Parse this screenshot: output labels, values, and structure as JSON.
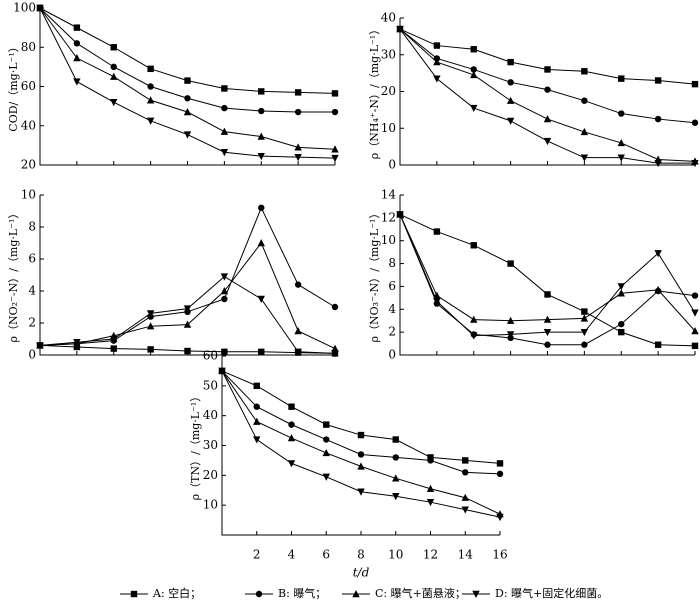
{
  "chart_data": [
    {
      "type": "line",
      "y_label": "COD/（mg·L⁻¹）",
      "x": [
        0,
        2,
        4,
        6,
        8,
        10,
        12,
        14,
        16
      ],
      "xlim": [
        0,
        16
      ],
      "ylim": [
        20,
        100
      ],
      "yticks": [
        20,
        40,
        60,
        80,
        100
      ],
      "series": [
        {
          "marker": "square",
          "values": [
            100,
            90,
            80,
            69,
            63,
            59,
            57.5,
            57,
            56.5
          ]
        },
        {
          "marker": "circle",
          "values": [
            100,
            82,
            70,
            60,
            54,
            49,
            47.5,
            47,
            47
          ]
        },
        {
          "marker": "triangle-up",
          "values": [
            100,
            74.5,
            65,
            53,
            47,
            37,
            34.5,
            29,
            28
          ]
        },
        {
          "marker": "triangle-down",
          "values": [
            100,
            62.5,
            52,
            42.5,
            35.5,
            26.5,
            24.5,
            24,
            23.5
          ]
        }
      ]
    },
    {
      "type": "line",
      "y_label": "ρ（NH₄⁺-N）/（mg·L⁻¹）",
      "x": [
        0,
        2,
        4,
        6,
        8,
        10,
        12,
        14,
        16
      ],
      "xlim": [
        0,
        16
      ],
      "ylim": [
        0,
        40
      ],
      "yticks": [
        0,
        10,
        20,
        30,
        40
      ],
      "series": [
        {
          "marker": "square",
          "values": [
            37,
            32.5,
            31.5,
            28,
            26,
            25.5,
            23.5,
            23,
            22
          ]
        },
        {
          "marker": "circle",
          "values": [
            37,
            29,
            26,
            22.5,
            20.5,
            17.5,
            14,
            12.5,
            11.5
          ]
        },
        {
          "marker": "triangle-up",
          "values": [
            37,
            28,
            24.5,
            17.5,
            12.5,
            9,
            6,
            1.5,
            1
          ]
        },
        {
          "marker": "triangle-down",
          "values": [
            37,
            23.5,
            15.5,
            12,
            6.5,
            2,
            2,
            0.5,
            0.5
          ]
        }
      ]
    },
    {
      "type": "line",
      "y_label": "ρ（NO₂⁻-N）/（mg·L⁻¹）",
      "x": [
        0,
        2,
        4,
        6,
        8,
        10,
        12,
        14,
        16
      ],
      "xlim": [
        0,
        16
      ],
      "ylim": [
        0,
        10
      ],
      "yticks": [
        0,
        2,
        4,
        6,
        8,
        10
      ],
      "series": [
        {
          "marker": "square",
          "values": [
            0.6,
            0.5,
            0.4,
            0.35,
            0.25,
            0.2,
            0.2,
            0.15,
            0.1
          ]
        },
        {
          "marker": "circle",
          "values": [
            0.6,
            0.7,
            0.9,
            2.4,
            2.7,
            3.5,
            9.2,
            4.4,
            3.0
          ]
        },
        {
          "marker": "triangle-up",
          "values": [
            0.6,
            0.7,
            1.2,
            1.8,
            1.9,
            4.0,
            7.0,
            1.5,
            0.4
          ]
        },
        {
          "marker": "triangle-down",
          "values": [
            0.6,
            0.8,
            1.0,
            2.6,
            2.9,
            4.9,
            3.5,
            0.2,
            0.1
          ]
        }
      ]
    },
    {
      "type": "line",
      "y_label": "ρ（NO₃⁻-N）/（mg·L⁻¹）",
      "x": [
        0,
        2,
        4,
        6,
        8,
        10,
        12,
        14,
        16
      ],
      "xlim": [
        0,
        16
      ],
      "ylim": [
        0,
        14
      ],
      "yticks": [
        0,
        2,
        4,
        6,
        8,
        10,
        12,
        14
      ],
      "series": [
        {
          "marker": "square",
          "values": [
            12.3,
            10.8,
            9.6,
            8.0,
            5.3,
            3.8,
            2.0,
            0.9,
            0.8
          ]
        },
        {
          "marker": "circle",
          "values": [
            12.3,
            4.5,
            1.8,
            1.5,
            0.9,
            0.9,
            2.7,
            5.6,
            5.2
          ]
        },
        {
          "marker": "triangle-up",
          "values": [
            12.3,
            5.2,
            3.1,
            3.0,
            3.1,
            3.2,
            5.4,
            5.7,
            2.1
          ]
        },
        {
          "marker": "triangle-down",
          "values": [
            12.3,
            4.7,
            1.7,
            1.8,
            2.0,
            2.0,
            6.0,
            8.9,
            3.7
          ]
        }
      ]
    },
    {
      "type": "line",
      "y_label": "ρ（TN）/（mg·L⁻¹）",
      "x_label": "t/d",
      "x": [
        0,
        2,
        4,
        6,
        8,
        10,
        12,
        14,
        16
      ],
      "xlim": [
        0,
        16
      ],
      "xticks": [
        2,
        4,
        6,
        8,
        10,
        12,
        14,
        16
      ],
      "ylim": [
        0,
        60
      ],
      "yticks": [
        10,
        20,
        30,
        40,
        50,
        60
      ],
      "series": [
        {
          "marker": "square",
          "values": [
            55,
            50,
            43,
            37,
            33.5,
            32,
            26,
            25,
            24
          ]
        },
        {
          "marker": "circle",
          "values": [
            55,
            43,
            37,
            32,
            27,
            26,
            25,
            21,
            20.5
          ]
        },
        {
          "marker": "triangle-up",
          "values": [
            55,
            38,
            32.5,
            27.5,
            23,
            19,
            15.5,
            12.5,
            7
          ]
        },
        {
          "marker": "triangle-down",
          "values": [
            55,
            32,
            24,
            19.5,
            14.5,
            13,
            11,
            8.5,
            6
          ]
        }
      ]
    }
  ],
  "legend": [
    {
      "marker": "square",
      "name": "A: 空白；"
    },
    {
      "marker": "circle",
      "name": "B: 曝气；"
    },
    {
      "marker": "triangle-up",
      "name": "C: 曝气+菌悬液；"
    },
    {
      "marker": "triangle-down",
      "name": "D: 曝气+固定化细菌。"
    }
  ]
}
